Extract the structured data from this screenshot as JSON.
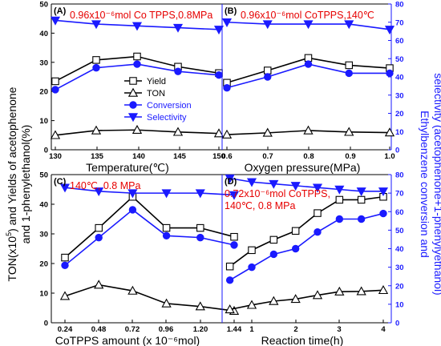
{
  "colors": {
    "black": "#000000",
    "blue": "#1a1aff",
    "red": "#e60000",
    "frame": "#000000"
  },
  "y_axis_left": {
    "title_line1": "TON(x10",
    "title_sup": "5",
    "title_line2": ") and Yields of acetophenone",
    "title_line3": "and 1-phenylethanol(%)"
  },
  "y_axis_right": {
    "title_line1": "Ethylbenzene conversion and",
    "title_line2": "selectivity (acetophenone+1-phenylyethanol)"
  },
  "legend": [
    {
      "label": "Yield",
      "marker": "open-square",
      "color": "#000000"
    },
    {
      "label": "TON",
      "marker": "open-triangle",
      "color": "#000000"
    },
    {
      "label": "Conversion",
      "marker": "filled-circle",
      "color": "#1a1aff"
    },
    {
      "label": "Selectivity",
      "marker": "filled-down-triangle",
      "color": "#1a1aff"
    }
  ],
  "chart_data": [
    {
      "type": "line",
      "panel_label": "(A)",
      "annotation": "0.96x10⁻⁶mol Co TPPS,0.8MPa",
      "xlabel": "Temperature(℃)",
      "x_ticks": [
        "130",
        "135",
        "140",
        "145",
        "150"
      ],
      "x": [
        130,
        135,
        140,
        145,
        150
      ],
      "xlim": [
        130,
        150
      ],
      "ylim_left": [
        0,
        50
      ],
      "ylim_right": [
        0,
        80
      ],
      "series": [
        {
          "name": "Yield",
          "axis": "left",
          "values": [
            23.5,
            30.8,
            32.0,
            28.5,
            26.3
          ]
        },
        {
          "name": "TON",
          "axis": "left",
          "values": [
            5.0,
            6.6,
            6.8,
            6.1,
            5.6
          ]
        },
        {
          "name": "Conversion",
          "axis": "right",
          "values": [
            33,
            45,
            47,
            43,
            41
          ]
        },
        {
          "name": "Selectivity",
          "axis": "right",
          "values": [
            71,
            69,
            68,
            67,
            66
          ]
        }
      ]
    },
    {
      "type": "line",
      "panel_label": "(B)",
      "annotation": "0.96x10⁻⁶mol CoTPPS,140℃",
      "xlabel": "Oxygen pressure(MPa)",
      "x_ticks": [
        "0.6",
        "0.7",
        "0.8",
        "0.9",
        "1.0"
      ],
      "x": [
        0.6,
        0.7,
        0.8,
        0.9,
        1.0
      ],
      "xlim": [
        0.6,
        1.0
      ],
      "ylim_left": [
        0,
        50
      ],
      "ylim_right": [
        0,
        80
      ],
      "series": [
        {
          "name": "Yield",
          "axis": "left",
          "values": [
            23.0,
            27.2,
            31.5,
            29.0,
            28.0
          ]
        },
        {
          "name": "TON",
          "axis": "left",
          "values": [
            5.2,
            5.8,
            6.6,
            6.1,
            5.9
          ]
        },
        {
          "name": "Conversion",
          "axis": "right",
          "values": [
            34,
            40,
            47,
            42,
            42
          ]
        },
        {
          "name": "Selectivity",
          "axis": "right",
          "values": [
            70,
            69,
            69,
            69,
            66
          ]
        }
      ]
    },
    {
      "type": "line",
      "panel_label": "(C)",
      "annotation": "140℃, 0.8 MPa",
      "xlabel": "CoTPPS amount (x 10⁻⁶mol)",
      "x_ticks": [
        "0.24",
        "0.48",
        "0.72",
        "0.96",
        "1.20",
        "1.44"
      ],
      "x": [
        0.24,
        0.48,
        0.72,
        0.96,
        1.2,
        1.44
      ],
      "xlim": [
        0.24,
        1.44
      ],
      "ylim_left": [
        0,
        50
      ],
      "ylim_right": [
        0,
        80
      ],
      "series": [
        {
          "name": "Yield",
          "axis": "left",
          "values": [
            22.0,
            32.0,
            42.5,
            32.0,
            32.0,
            29.0
          ]
        },
        {
          "name": "TON",
          "axis": "left",
          "values": [
            9.0,
            12.8,
            10.8,
            6.5,
            5.5,
            4.0
          ]
        },
        {
          "name": "Conversion",
          "axis": "right",
          "values": [
            31,
            46,
            61,
            47,
            46,
            42
          ]
        },
        {
          "name": "Selectivity",
          "axis": "right",
          "values": [
            73,
            71,
            70,
            70,
            70,
            69
          ]
        }
      ]
    },
    {
      "type": "line",
      "panel_label": "(D)",
      "annotation_line1": "0.72x10⁻⁶mol CoTPPS,",
      "annotation_line2": "140℃, 0.8 MPa",
      "xlabel": "Reaction time(h)",
      "x_ticks": [
        "1",
        "2",
        "3",
        "4"
      ],
      "x": [
        0.5,
        1,
        1.5,
        2,
        2.5,
        3,
        3.5,
        4
      ],
      "xlim": [
        0.5,
        4
      ],
      "ylim_left": [
        0,
        50
      ],
      "ylim_right": [
        0,
        80
      ],
      "series": [
        {
          "name": "Yield",
          "axis": "left",
          "values": [
            19,
            24.5,
            28,
            31,
            37,
            41.5,
            41.5,
            42.5
          ]
        },
        {
          "name": "TON",
          "axis": "left",
          "values": [
            4.5,
            6.0,
            7.3,
            8.0,
            9.3,
            10.5,
            10.6,
            11.0
          ]
        },
        {
          "name": "Conversion",
          "axis": "right",
          "values": [
            23,
            30,
            37,
            40,
            49,
            56,
            56,
            59
          ]
        },
        {
          "name": "Selectivity",
          "axis": "right",
          "values": [
            78,
            76,
            75,
            74,
            73,
            72,
            71,
            71
          ]
        }
      ]
    }
  ]
}
